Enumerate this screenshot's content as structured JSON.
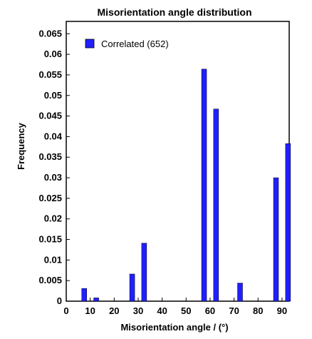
{
  "chart_data": {
    "type": "bar",
    "title": "Misorientation angle distribution",
    "xlabel": "Misorientation angle / (°)",
    "ylabel": "Frequency",
    "xlim": [
      0,
      93
    ],
    "ylim": [
      0,
      0.068
    ],
    "xticks": [
      0,
      10,
      20,
      30,
      40,
      50,
      60,
      70,
      80,
      90
    ],
    "yticks": [
      0,
      0.005,
      0.01,
      0.015,
      0.02,
      0.025,
      0.03,
      0.035,
      0.04,
      0.045,
      0.05,
      0.055,
      0.06,
      0.065
    ],
    "ytick_labels": [
      "0",
      "0.005",
      "0.01",
      "0.015",
      "0.02",
      "0.025",
      "0.03",
      "0.035",
      "0.04",
      "0.045",
      "0.05",
      "0.055",
      "0.06",
      "0.065"
    ],
    "series": [
      {
        "name": "Correlated (652)",
        "color": "#1f1fff",
        "x": [
          7.5,
          12.5,
          27.5,
          32.5,
          57.5,
          62.5,
          72.5,
          87.5,
          92.5
        ],
        "values": [
          0.0031,
          0.0008,
          0.0066,
          0.0141,
          0.0564,
          0.0467,
          0.0044,
          0.03,
          0.0383
        ]
      }
    ],
    "legend": {
      "position": "top-left"
    },
    "grid": false
  }
}
